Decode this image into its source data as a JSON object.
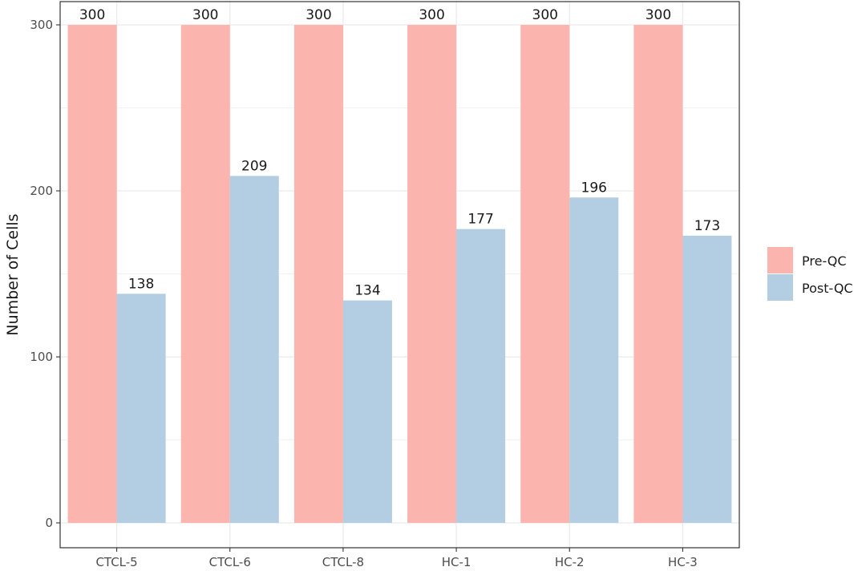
{
  "chart_data": {
    "type": "bar",
    "title": "",
    "xlabel": "",
    "ylabel": "Number of Cells",
    "categories": [
      "CTCL-5",
      "CTCL-6",
      "CTCL-8",
      "HC-1",
      "HC-2",
      "HC-3"
    ],
    "series": [
      {
        "name": "Pre-QC",
        "color": "#fbb4ae",
        "values": [
          300,
          300,
          300,
          300,
          300,
          300
        ]
      },
      {
        "name": "Post-QC",
        "color": "#b3cde3",
        "values": [
          138,
          209,
          134,
          177,
          196,
          173
        ]
      }
    ],
    "ylim": [
      0,
      300
    ],
    "yticks": [
      0,
      100,
      200,
      300
    ],
    "grid": true,
    "legend": "right"
  }
}
